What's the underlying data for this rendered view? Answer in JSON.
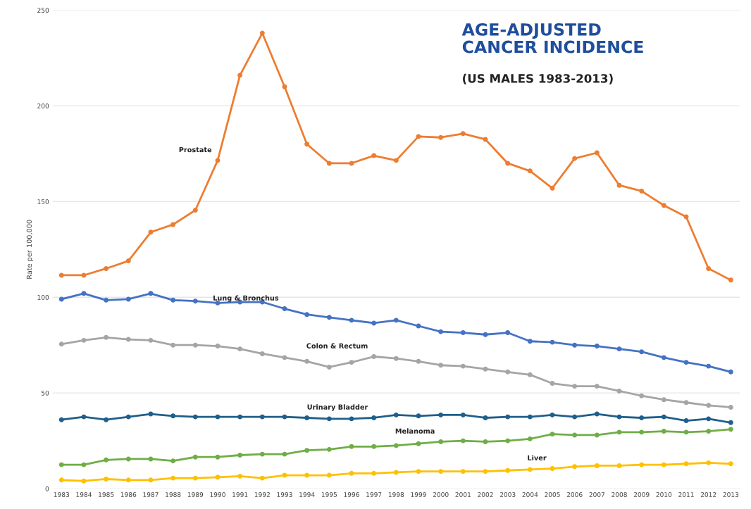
{
  "chart_data": {
    "type": "line",
    "title": "AGE-ADJUSTED\nCANCER INCIDENCE",
    "subtitle": "(US MALES 1983-2013)",
    "ylabel": "Rate per 100,000",
    "categories": [
      "1983",
      "1984",
      "1985",
      "1986",
      "1987",
      "1988",
      "1989",
      "1990",
      "1991",
      "1992",
      "1993",
      "1994",
      "1995",
      "1996",
      "1997",
      "1998",
      "1999",
      "2000",
      "2001",
      "2002",
      "2003",
      "2004",
      "2005",
      "2006",
      "2007",
      "2008",
      "2009",
      "2010",
      "2011",
      "2012",
      "2013"
    ],
    "series": [
      {
        "color": "#ed7d31",
        "values": [
          111.5,
          111.5,
          115,
          119,
          134,
          138,
          145.5,
          171.5,
          216,
          238,
          210,
          180,
          170,
          170,
          174,
          171.5,
          184,
          183.5,
          185.5,
          182.5,
          170,
          166,
          157,
          172.5,
          175.5,
          158.5,
          155.5,
          148,
          142,
          115,
          109
        ]
      },
      {
        "color": "#4472c4",
        "values": [
          99,
          102,
          98.5,
          99,
          102,
          98.5,
          98,
          97,
          97.5,
          97.5,
          94,
          91,
          89.5,
          88,
          86.5,
          88,
          85,
          82,
          81.5,
          80.5,
          81.5,
          77,
          76.5,
          75,
          74.5,
          73,
          71.5,
          68.5,
          66,
          64,
          61
        ]
      },
      {
        "color": "#a5a5a5",
        "values": [
          75.5,
          77.5,
          79,
          78,
          77.5,
          75,
          75,
          74.5,
          73,
          70.5,
          68.5,
          66.5,
          63.5,
          66,
          69,
          68,
          66.5,
          64.5,
          64,
          62.5,
          61,
          59.5,
          55,
          53.5,
          53.5,
          51,
          48.5,
          46.5,
          45,
          43.5,
          42.5
        ]
      },
      {
        "color": "#1f5f8b",
        "values": [
          36,
          37.5,
          36,
          37.5,
          39,
          38,
          37.5,
          37.5,
          37.5,
          37.5,
          37.5,
          37,
          36.5,
          36.5,
          37,
          38.5,
          38,
          38.5,
          38.5,
          37,
          37.5,
          37.5,
          38.5,
          37.5,
          39,
          37.5,
          37,
          37.5,
          35.5,
          36.5,
          34.5
        ]
      },
      {
        "color": "#70ad47",
        "values": [
          12.5,
          12.5,
          15,
          15.5,
          15.5,
          14.5,
          16.5,
          16.5,
          17.5,
          18,
          18,
          20,
          20.5,
          22,
          22,
          22.5,
          23.5,
          24.5,
          25,
          24.5,
          25,
          26,
          28.5,
          28,
          28,
          29.5,
          29.5,
          30,
          29.5,
          30,
          31
        ]
      },
      {
        "color": "#ffc000",
        "values": [
          4.5,
          4,
          5,
          4.5,
          4.5,
          5.5,
          5.5,
          6,
          6.5,
          5.5,
          7,
          7,
          7,
          8,
          8,
          8.5,
          9,
          9,
          9,
          9,
          9.5,
          10,
          10.5,
          11.5,
          12,
          12,
          12.5,
          12.5,
          13,
          13.5,
          13
        ]
      }
    ],
    "annotations": [
      {
        "text": "Prostate",
        "x": "1990",
        "y": 171.5
      },
      {
        "text": "Lung & Bronchus",
        "x": "1993",
        "y": 94
      },
      {
        "text": "Colon & Rectum",
        "x": "1997",
        "y": 69
      },
      {
        "text": "Urinary Bladder",
        "x": "1997",
        "y": 37
      },
      {
        "text": "Melanoma",
        "x": "2000",
        "y": 24.5
      },
      {
        "text": "Liver",
        "x": "2005",
        "y": 10.5
      }
    ],
    "ylim": [
      0,
      250
    ],
    "yticks": [
      0,
      50,
      100,
      150,
      200,
      250
    ],
    "grid": "y",
    "marker": "circle",
    "line_style": "solid"
  }
}
